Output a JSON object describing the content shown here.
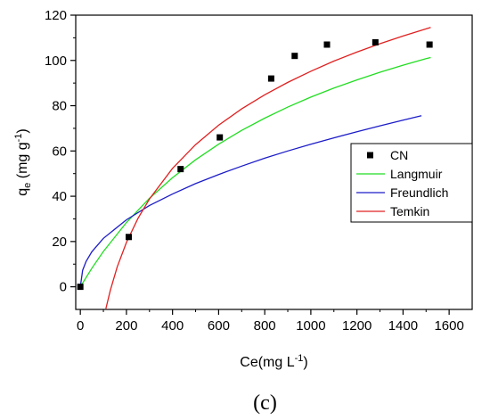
{
  "chart_data": {
    "type": "scatter",
    "xlabel": {
      "main": "Ce(mg L",
      "sup": "-1",
      "end": ")"
    },
    "ylabel": {
      "main": "q",
      "sub": "e",
      "mid": " (mg g",
      "sup": "-1",
      "end": ")"
    },
    "xlim": [
      -20,
      1700
    ],
    "ylim": [
      -10,
      120
    ],
    "xticks": [
      0,
      200,
      400,
      600,
      800,
      1000,
      1200,
      1400,
      1600
    ],
    "yticks": [
      0,
      20,
      40,
      60,
      80,
      100,
      120
    ],
    "grid": false,
    "legend_position": "right",
    "panel_label": "(c)",
    "series": [
      {
        "name": "CN",
        "kind": "scatter",
        "color": "#000000",
        "x": [
          0,
          210,
          435,
          605,
          828,
          930,
          1070,
          1280,
          1515
        ],
        "y": [
          0,
          22,
          52,
          66,
          92,
          102,
          107,
          108,
          107
        ]
      },
      {
        "name": "Langmuir",
        "kind": "line",
        "color": "#22dd22",
        "x": [
          0,
          50,
          100,
          200,
          300,
          400,
          500,
          600,
          700,
          800,
          900,
          1000,
          1100,
          1200,
          1300,
          1400,
          1500,
          1520
        ],
        "y": [
          0,
          8.2,
          15.6,
          28.4,
          39.1,
          48.2,
          56.1,
          63.0,
          69.1,
          74.5,
          79.4,
          83.8,
          87.8,
          91.4,
          94.8,
          97.9,
          100.8,
          101.3
        ]
      },
      {
        "name": "Freundlich",
        "kind": "line",
        "color": "#1c1cc8",
        "x": [
          0,
          10,
          25,
          50,
          100,
          200,
          300,
          400,
          500,
          600,
          700,
          800,
          900,
          1000,
          1100,
          1200,
          1300,
          1400,
          1480
        ],
        "y": [
          0,
          7.3,
          11.2,
          15.5,
          21.4,
          29.6,
          35.9,
          41.0,
          45.6,
          49.6,
          53.3,
          56.8,
          60.0,
          63.0,
          65.8,
          68.5,
          71.1,
          73.6,
          75.6
        ]
      },
      {
        "name": "Temkin",
        "kind": "line",
        "color": "#e02020",
        "x": [
          110,
          130,
          160,
          200,
          250,
          300,
          400,
          500,
          600,
          700,
          800,
          900,
          1000,
          1100,
          1200,
          1300,
          1400,
          1520
        ],
        "y": [
          -10,
          -1.6,
          8.8,
          19.6,
          30.2,
          38.8,
          52.3,
          62.8,
          71.4,
          78.6,
          84.8,
          90.3,
          95.2,
          99.7,
          103.7,
          107.4,
          110.8,
          114.6
        ]
      }
    ]
  }
}
